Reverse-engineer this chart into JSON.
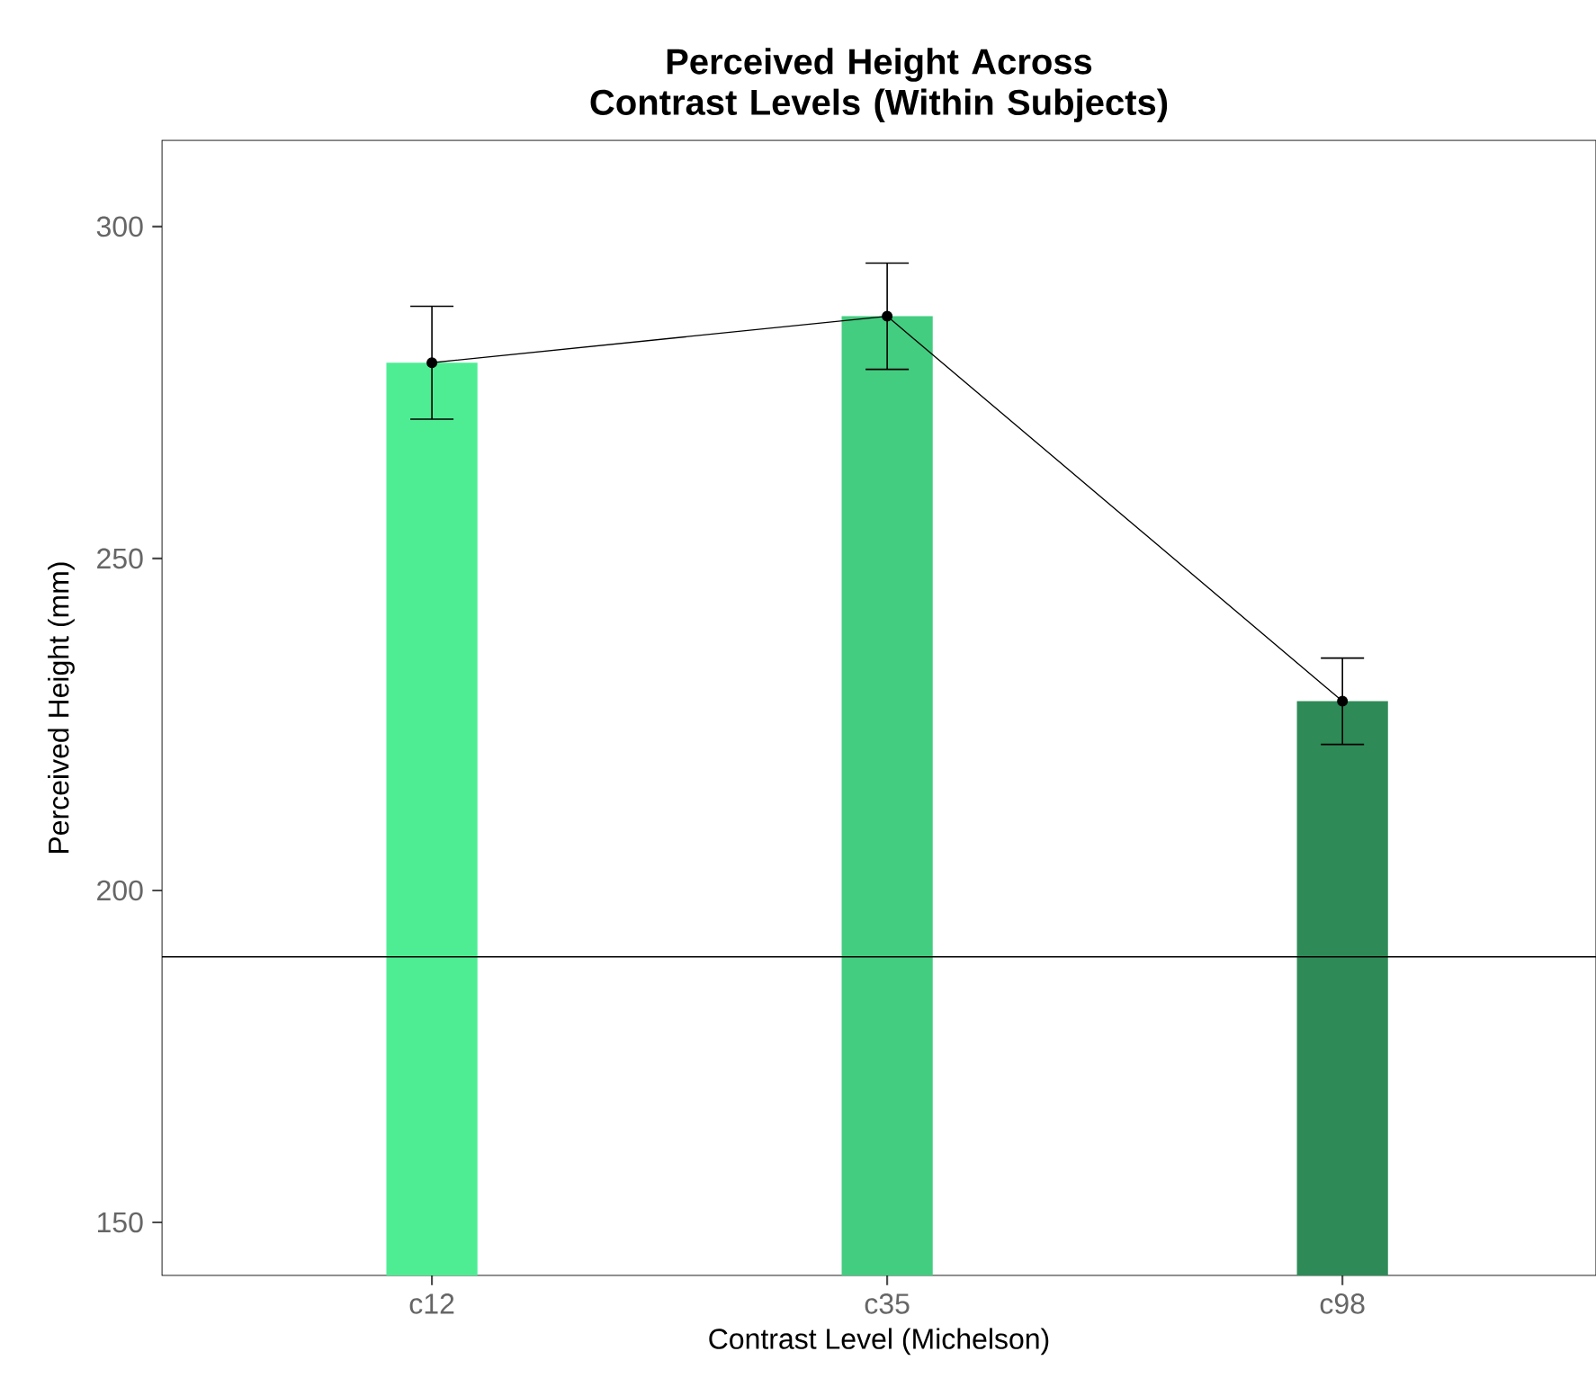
{
  "chart_data": {
    "type": "bar",
    "title": "Perceived Height Across Contrast Levels (Within Subjects)",
    "xlabel": "Contrast Level (Michelson)",
    "ylabel": "Perceived Height (mm)",
    "categories": [
      "c12",
      "c35",
      "c98"
    ],
    "series": [
      {
        "colors": [
          "#4eed94",
          "#43cd80",
          "#2e8b57"
        ],
        "values": [
          279.5,
          286.5,
          228.5
        ]
      },
      {
        "type": "line",
        "color": "#000000",
        "marker": "circle",
        "values": [
          279.5,
          286.5,
          228.5
        ],
        "errors": [
          8.5,
          8,
          6.5
        ]
      }
    ],
    "ylim": [
      142,
      313
    ],
    "yticks": [
      150,
      200,
      250,
      300
    ],
    "ref_lines": [
      {
        "axis": "y",
        "value": 190,
        "color": "#000000"
      }
    ],
    "grid": false
  }
}
